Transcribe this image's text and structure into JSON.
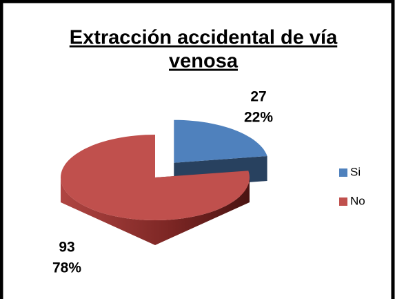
{
  "chart_data": {
    "type": "pie3d",
    "title": [
      "Extracción accidental de vía",
      "venosa"
    ],
    "categories": [
      "Si",
      "No"
    ],
    "values": [
      27,
      93
    ],
    "percentages": [
      22,
      78
    ],
    "percentage_labels": [
      "22%",
      "78%"
    ],
    "colors": [
      "#4f81bd",
      "#c0504d"
    ],
    "exploded": [
      true,
      false
    ],
    "legend": "right"
  }
}
